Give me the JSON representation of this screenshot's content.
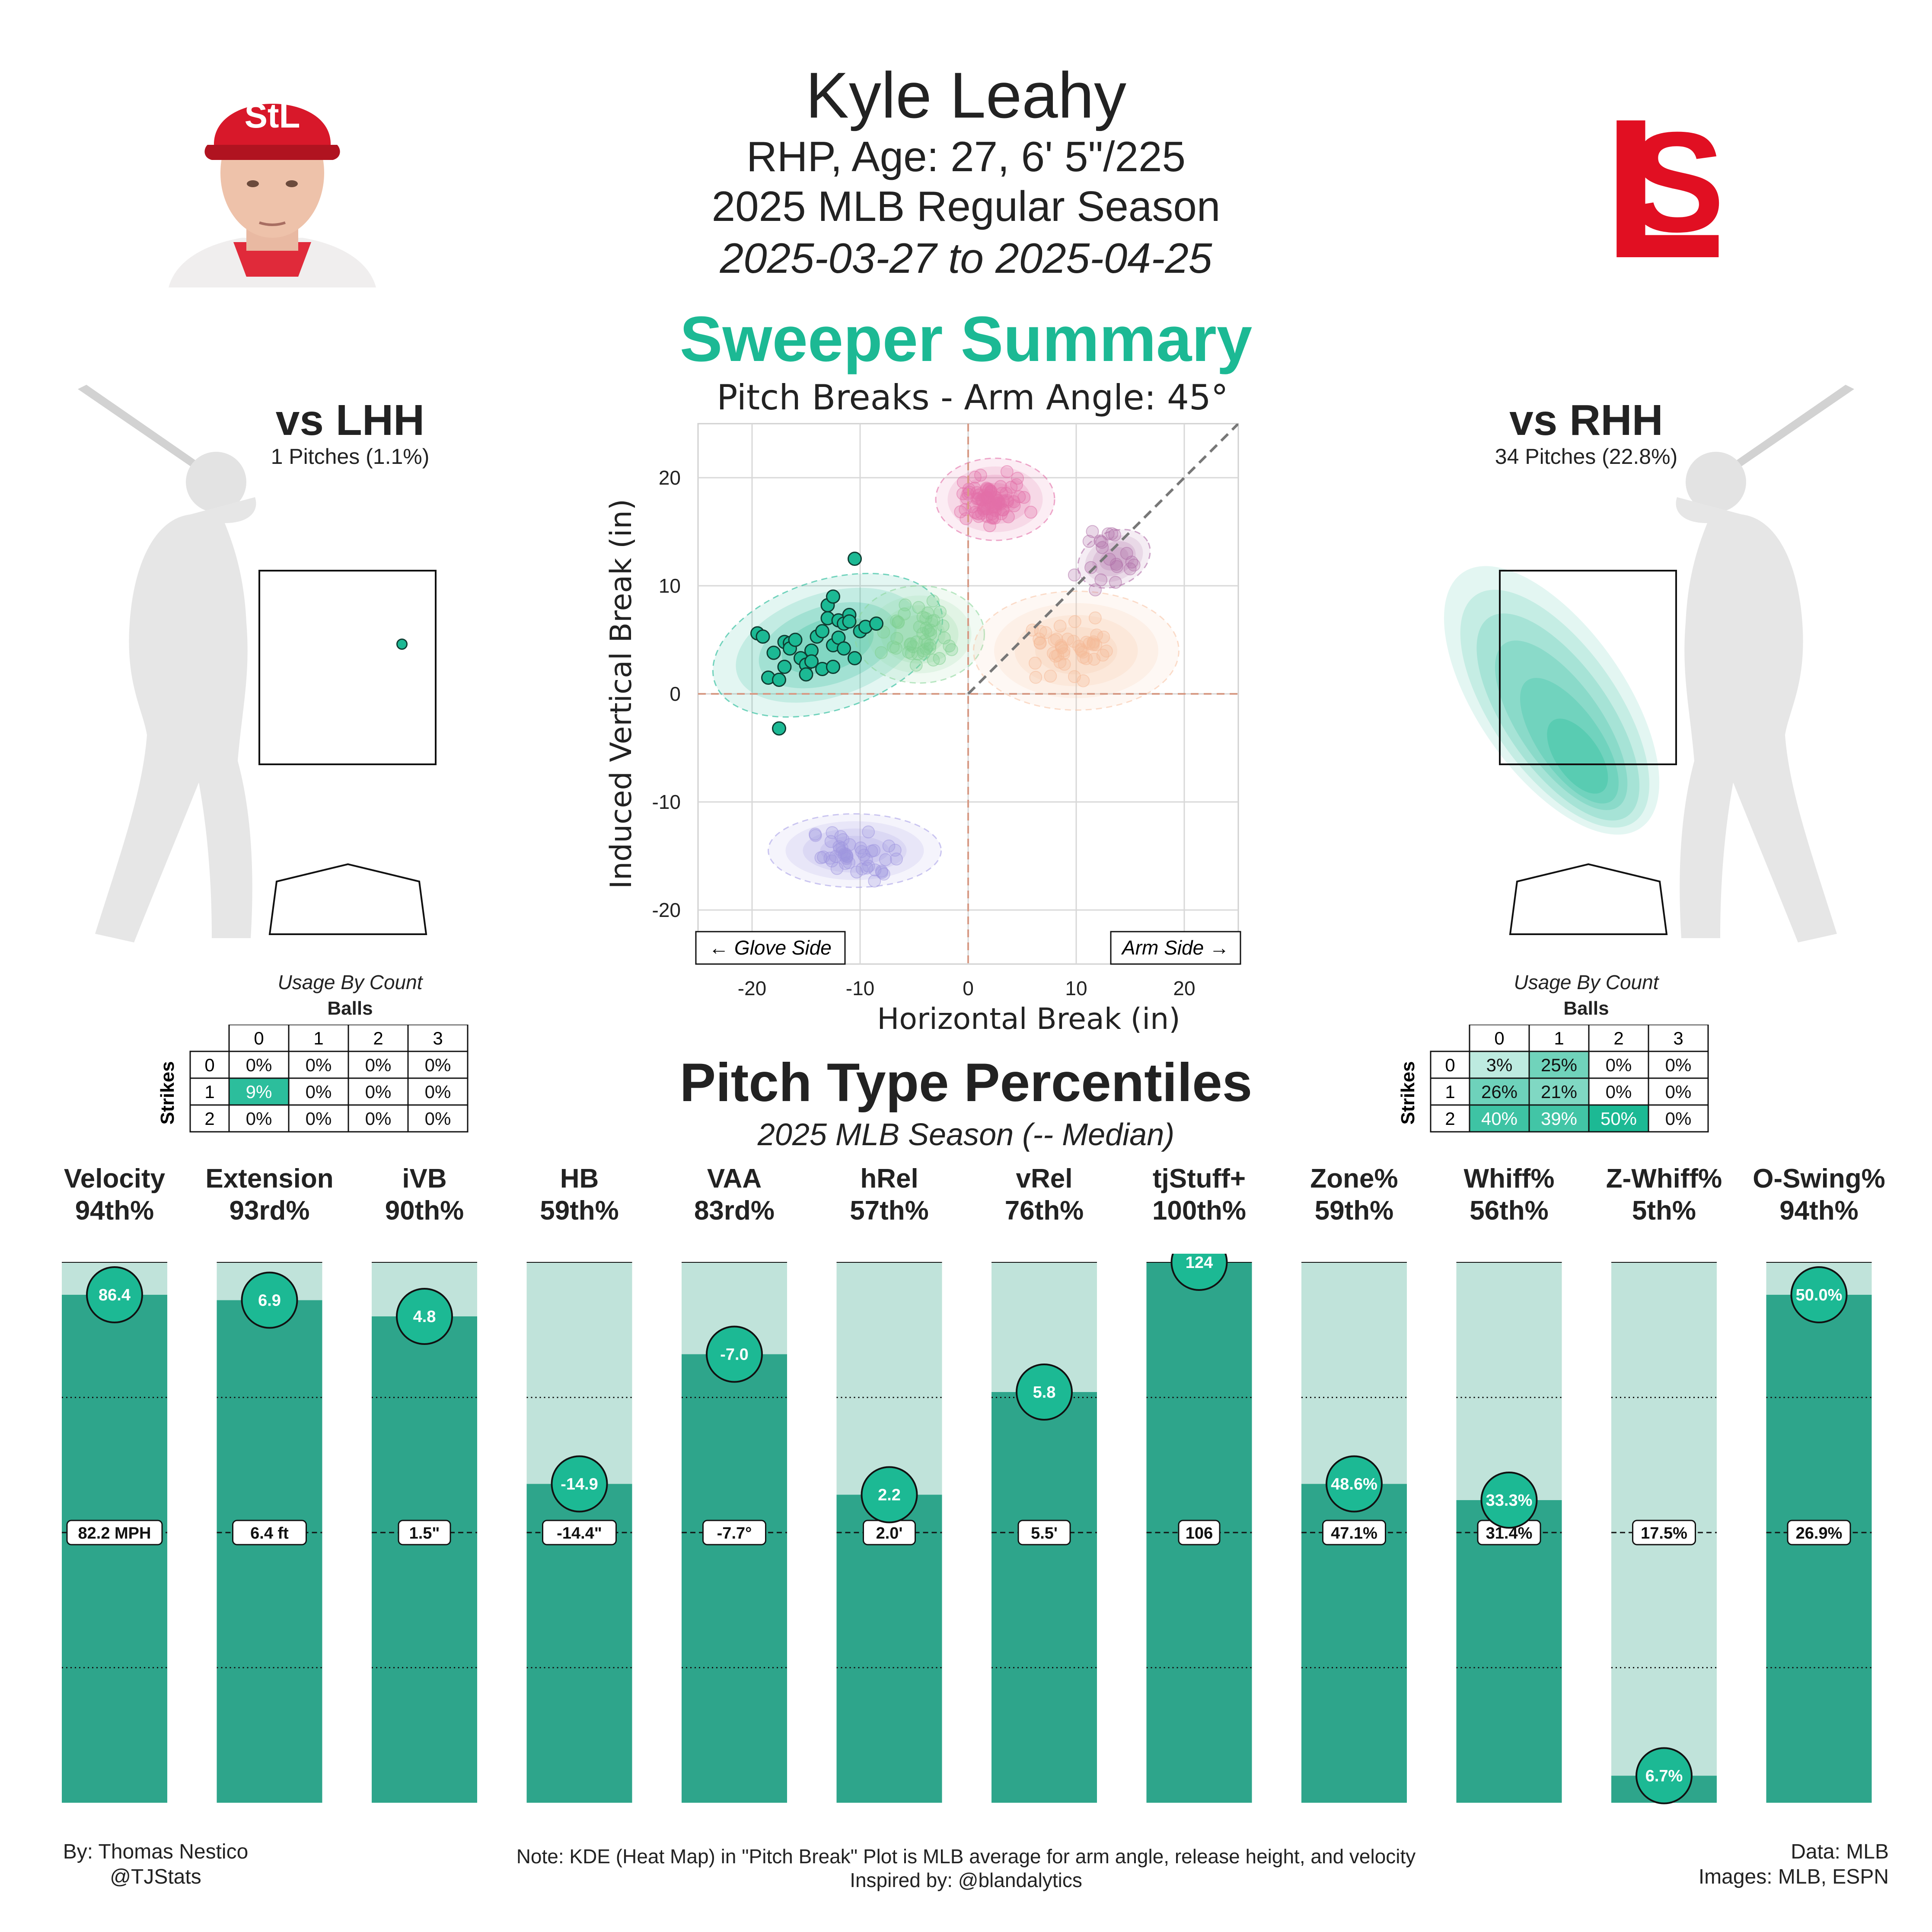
{
  "header": {
    "name": "Kyle Leahy",
    "bio": "RHP, Age: 27, 6' 5\"/225",
    "season": "2025 MLB Regular Season",
    "dates": "2025-03-27 to 2025-04-25"
  },
  "pitch_summary": {
    "title": "Sweeper Summary",
    "plot_title": "Pitch Breaks - Arm Angle: 45°",
    "glove_side": "← Glove Side",
    "arm_side": "Arm Side →"
  },
  "lhh": {
    "title": "vs LHH",
    "pitches": "1 Pitches (1.1%)",
    "usage_caption": "Usage By Count",
    "balls_label": "Balls",
    "strikes_label": "Strikes",
    "col_headers": [
      "0",
      "1",
      "2",
      "3"
    ],
    "row_headers": [
      "0",
      "1",
      "2"
    ],
    "cells": [
      [
        "0%",
        "0%",
        "0%",
        "0%"
      ],
      [
        "9%",
        "0%",
        "0%",
        "0%"
      ],
      [
        "0%",
        "0%",
        "0%",
        "0%"
      ]
    ],
    "shade": [
      [
        0,
        0,
        0,
        0
      ],
      [
        0.9,
        0,
        0,
        0
      ],
      [
        0,
        0,
        0,
        0
      ]
    ]
  },
  "rhh": {
    "title": "vs RHH",
    "pitches": "34 Pitches (22.8%)",
    "usage_caption": "Usage By Count",
    "balls_label": "Balls",
    "strikes_label": "Strikes",
    "col_headers": [
      "0",
      "1",
      "2",
      "3"
    ],
    "row_headers": [
      "0",
      "1",
      "2"
    ],
    "cells": [
      [
        "3%",
        "25%",
        "0%",
        "0%"
      ],
      [
        "26%",
        "21%",
        "0%",
        "0%"
      ],
      [
        "40%",
        "39%",
        "50%",
        "0%"
      ]
    ],
    "shade": [
      [
        0.05,
        0.5,
        0,
        0
      ],
      [
        0.52,
        0.42,
        0,
        0
      ],
      [
        0.8,
        0.78,
        1.0,
        0
      ]
    ]
  },
  "percentiles": {
    "title": "Pitch Type Percentiles",
    "subtitle": "2025 MLB Season (-- Median)"
  },
  "footer": {
    "by": "By: Thomas Nestico",
    "handle": "@TJStats",
    "note": "Note: KDE (Heat Map) in \"Pitch Break\" Plot is MLB average for arm angle, release height, and velocity",
    "inspired": "Inspired by: @blandalytics",
    "data": "Data: MLB",
    "images": "Images: MLB, ESPN"
  },
  "colors": {
    "accent": "#1cb994",
    "bar_fill": "#2ea58b",
    "bar_bg": "#c0e3da",
    "cardinals_red": "#e10f22"
  },
  "icons": [
    "player-headshot-icon",
    "cardinals-logo-icon",
    "batter-silhouette-icon",
    "home-plate-icon"
  ],
  "chart_data": [
    {
      "type": "scatter",
      "title": "Pitch Breaks - Arm Angle: 45°",
      "xlabel": "Horizontal Break (in)",
      "ylabel": "Induced Vertical Break (in)",
      "xlim": [
        -25,
        25
      ],
      "ylim": [
        -25,
        25
      ],
      "xticks": [
        -20,
        -10,
        0,
        10,
        20
      ],
      "yticks": [
        -20,
        -10,
        0,
        10,
        20
      ],
      "grid": true,
      "series": [
        {
          "name": "Sweeper",
          "color": "#1cb994",
          "points": [
            [
              -19.5,
              5.6
            ],
            [
              -19,
              5.3
            ],
            [
              -18.5,
              1.5
            ],
            [
              -18,
              3.8
            ],
            [
              -17.5,
              -3.2
            ],
            [
              -17.5,
              1.3
            ],
            [
              -17,
              4.8
            ],
            [
              -17,
              2.5
            ],
            [
              -16.5,
              4.7
            ],
            [
              -16.5,
              4.2
            ],
            [
              -16,
              5
            ],
            [
              -15.5,
              3.3
            ],
            [
              -15,
              2.7
            ],
            [
              -15,
              1.8
            ],
            [
              -14.5,
              4
            ],
            [
              -14.5,
              3
            ],
            [
              -14,
              5.3
            ],
            [
              -13.5,
              5.8
            ],
            [
              -13.5,
              2.3
            ],
            [
              -13,
              8.2
            ],
            [
              -13,
              7
            ],
            [
              -12.5,
              9
            ],
            [
              -12.5,
              4.5
            ],
            [
              -12.5,
              2.5
            ],
            [
              -12,
              6.8
            ],
            [
              -12,
              5.2
            ],
            [
              -11.5,
              6.5
            ],
            [
              -11.5,
              4.2
            ],
            [
              -11,
              7.3
            ],
            [
              -11,
              6.7
            ],
            [
              -10.5,
              12.5
            ],
            [
              -10.5,
              3.3
            ],
            [
              -10,
              5.8
            ],
            [
              -9.5,
              6.2
            ],
            [
              -8.5,
              6.5
            ]
          ]
        }
      ],
      "background_clusters": [
        {
          "color": "#e36fa8",
          "center": [
            2.5,
            18
          ],
          "n": 80
        },
        {
          "color": "#b06fa8",
          "center": [
            13,
            12.5
          ],
          "n": 20
        },
        {
          "color": "#7fcf8f",
          "center": [
            -4.5,
            5.5
          ],
          "n": 45
        },
        {
          "color": "#f5b998",
          "center": [
            10,
            4
          ],
          "n": 45
        },
        {
          "color": "#9f96e0",
          "center": [
            -10.5,
            -14.5
          ],
          "n": 45
        }
      ]
    },
    {
      "type": "bar",
      "title": "Pitch Type Percentiles",
      "categories": [
        "Velocity",
        "Extension",
        "iVB",
        "HB",
        "VAA",
        "hRel",
        "vRel",
        "tjStuff+",
        "Zone%",
        "Whiff%",
        "Z-Whiff%",
        "O-Swing%"
      ],
      "percentile_labels": [
        "94th%",
        "93rd%",
        "90th%",
        "59th%",
        "83rd%",
        "57th%",
        "76th%",
        "100th%",
        "59th%",
        "56th%",
        "5th%",
        "94th%"
      ],
      "percentiles": [
        94,
        93,
        90,
        59,
        83,
        57,
        76,
        100,
        59,
        56,
        5,
        94
      ],
      "player_values": [
        "86.4",
        "6.9",
        "4.8",
        "-14.9",
        "-7.0",
        "2.2",
        "5.8",
        "124",
        "48.6%",
        "33.3%",
        "6.7%",
        "50.0%"
      ],
      "median_values": [
        "82.2 MPH",
        "6.4 ft",
        "1.5\"",
        "-14.4\"",
        "-7.7°",
        "2.0'",
        "5.5'",
        "106",
        "47.1%",
        "31.4%",
        "17.5%",
        "26.9%"
      ],
      "ylim": [
        0,
        100
      ]
    }
  ]
}
